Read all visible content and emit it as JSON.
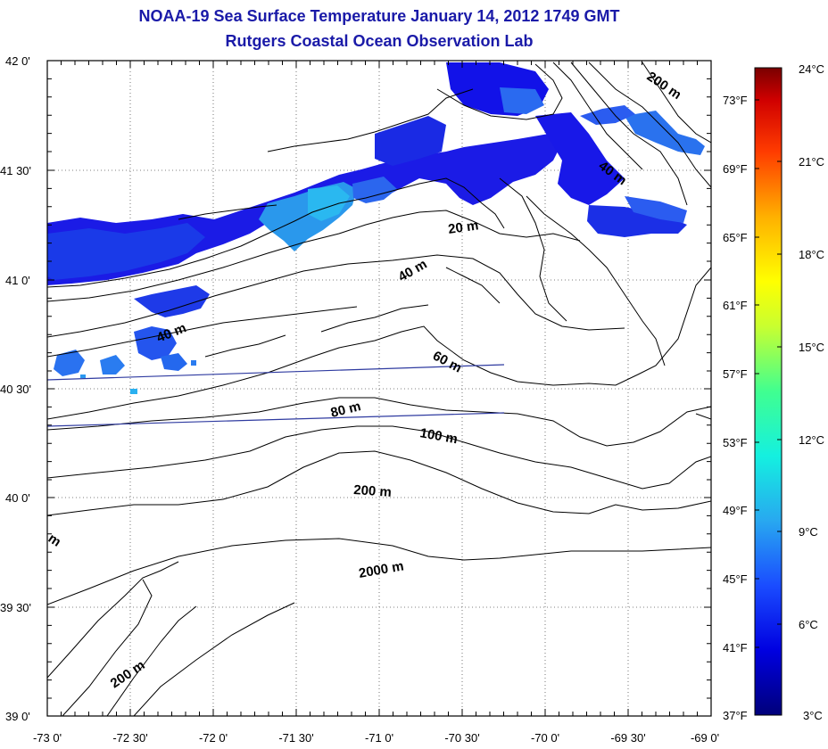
{
  "title": {
    "line1": "NOAA-19 Sea Surface Temperature January 14, 2012 1749 GMT",
    "line2": "Rutgers Coastal Ocean Observation Lab"
  },
  "axes": {
    "lat_labels": [
      "42 0'",
      "41 30'",
      "41 0'",
      "40 30'",
      "40 0'",
      "39 30'",
      "39 0'"
    ],
    "lon_labels": [
      "-73 0'",
      "-72 30'",
      "-72 0'",
      "-71 30'",
      "-71 0'",
      "-70 30'",
      "-70 0'",
      "-69 30'",
      "-69 0'"
    ]
  },
  "contours": [
    {
      "label": "20 m"
    },
    {
      "label": "40 m"
    },
    {
      "label": "40 m"
    },
    {
      "label": "40 m"
    },
    {
      "label": "60 m"
    },
    {
      "label": "80 m"
    },
    {
      "label": "100 m"
    },
    {
      "label": "200 m"
    },
    {
      "label": "200 m"
    },
    {
      "label": "200 m"
    },
    {
      "label": "2000 m"
    },
    {
      "label": "m"
    }
  ],
  "colorbar": {
    "celsius": [
      "24°C",
      "21°C",
      "18°C",
      "15°C",
      "12°C",
      "9°C",
      "6°C",
      "3°C"
    ],
    "fahrenheit": [
      "73°F",
      "69°F",
      "65°F",
      "61°F",
      "57°F",
      "53°F",
      "49°F",
      "45°F",
      "41°F",
      "37°F"
    ]
  },
  "colors": {
    "title": "#1a1aa8",
    "sst_cold": "#1212e8",
    "sst_mid": "#2255f0",
    "sst_warm": "#2aa8ee"
  }
}
